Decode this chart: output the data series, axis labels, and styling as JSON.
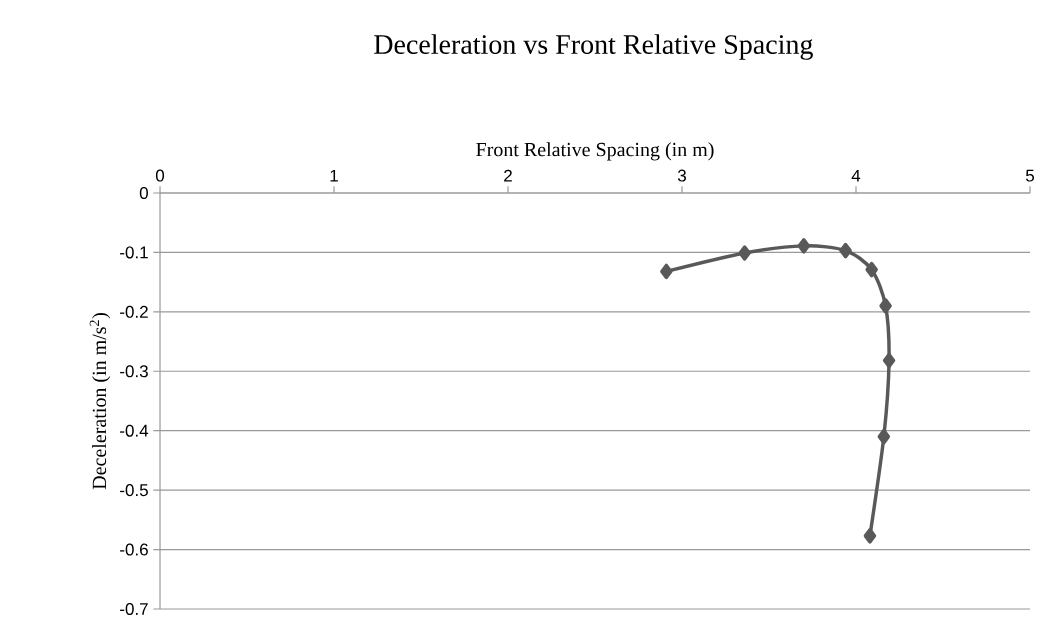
{
  "chart_data": {
    "type": "line",
    "title": "Deceleration vs Front Relative Spacing",
    "xlabel": "Front Relative Spacing (in m)",
    "ylabel": "Deceleration (in m/s$^{2}$)",
    "series": [
      {
        "color": "#595959",
        "x": [
          2.91,
          3.36,
          3.7,
          3.94,
          4.09,
          4.17,
          4.19,
          4.16,
          4.08
        ],
        "values": [
          -0.132,
          -0.101,
          -0.089,
          -0.097,
          -0.129,
          -0.19,
          -0.282,
          -0.41,
          -0.577
        ]
      }
    ],
    "xlim": [
      0,
      5
    ],
    "xticks": [
      0,
      1,
      2,
      3,
      4,
      5
    ],
    "ylim": [
      -0.7,
      0
    ],
    "yticks": [
      0,
      -0.1,
      -0.2,
      -0.3,
      -0.4,
      -0.5,
      -0.6,
      -0.7
    ],
    "grid": "y",
    "marker": "diamond",
    "line_style": "solid"
  }
}
